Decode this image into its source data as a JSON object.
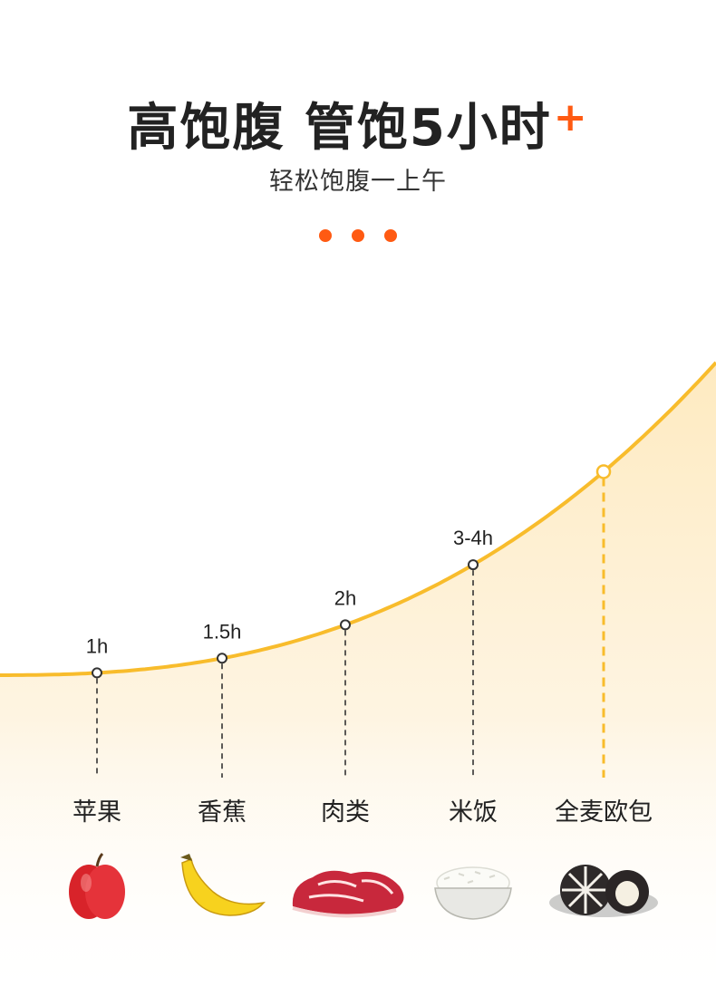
{
  "header": {
    "title": "高饱腹 管饱5小时",
    "title_plus": "+",
    "subtitle": "轻松饱腹一上午"
  },
  "colors": {
    "accent": "#ff5a12",
    "curve": "#f8bc2c",
    "area_fill": "#fde2a8",
    "text": "#222222"
  },
  "chart_data": {
    "type": "line",
    "categories": [
      "苹果",
      "香蕉",
      "肉类",
      "米饭",
      "全麦欧包"
    ],
    "point_labels": [
      "1h",
      "1.5h",
      "2h",
      "3-4h",
      ""
    ],
    "values": [
      1,
      1.5,
      2,
      3.5,
      5
    ],
    "title": "",
    "xlabel": "",
    "ylabel": "",
    "grid": false,
    "legend": "none",
    "highlight_index": 4,
    "food_icons": [
      "apple-icon",
      "banana-icon",
      "meat-icon",
      "rice-bowl-icon",
      "whole-wheat-bread-icon"
    ]
  }
}
